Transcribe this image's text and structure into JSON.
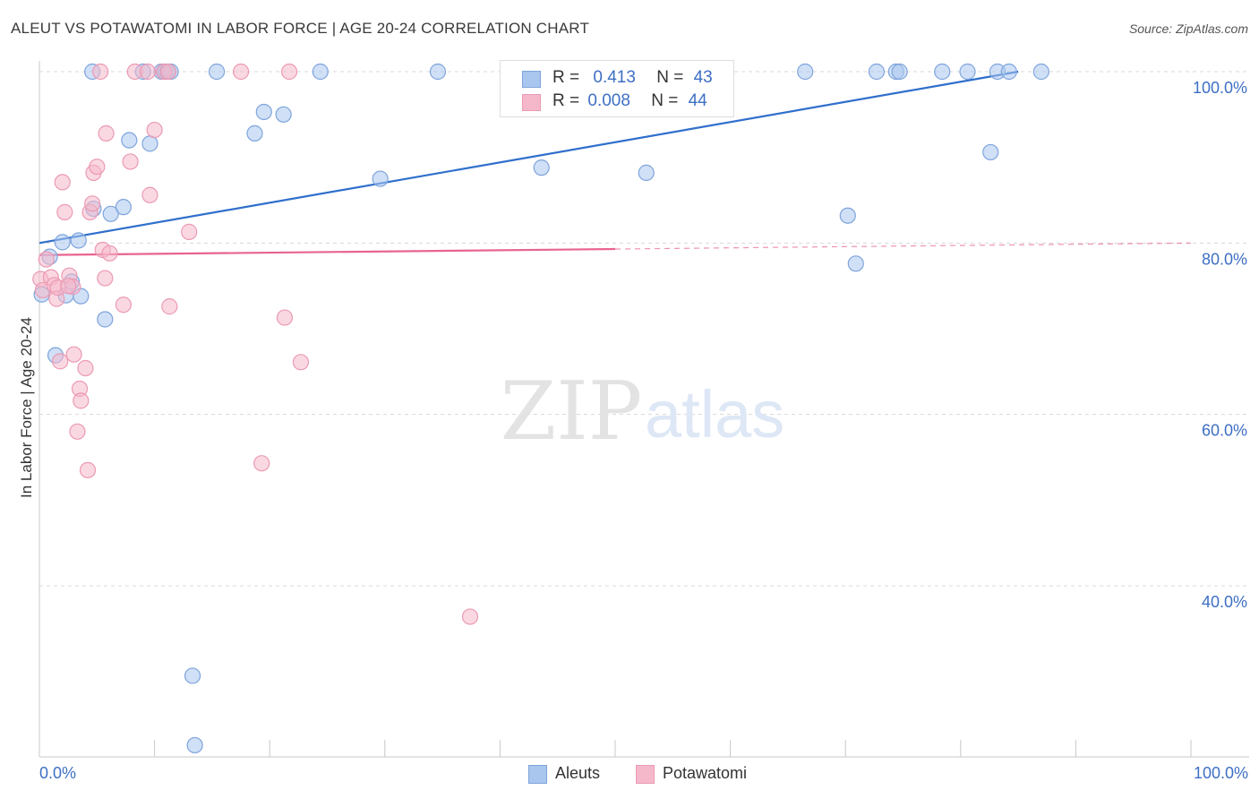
{
  "header": {
    "title": "ALEUT VS POTAWATOMI IN LABOR FORCE | AGE 20-24 CORRELATION CHART",
    "source": "Source: ZipAtlas.com"
  },
  "watermark": {
    "zip": "ZIP",
    "atlas": "atlas"
  },
  "stats": {
    "aleut": {
      "r_label": "R =",
      "r_value": "0.413",
      "n_label": "N =",
      "n_value": "43"
    },
    "potawatomi": {
      "r_label": "R =",
      "r_value": "0.008",
      "n_label": "N =",
      "n_value": "44"
    }
  },
  "legend": {
    "aleut": "Aleuts",
    "potawatomi": "Potawatomi"
  },
  "colors": {
    "aleut_fill": "#a9c6ee",
    "aleut_stroke": "#7ea4dc",
    "aleut_line": "#2f6fcc",
    "potawatomi_fill": "#f5b8cb",
    "potawatomi_stroke": "#eb9ab3",
    "potawatomi_line": "#e8648f",
    "grid": "#d8d8d8",
    "axis_text": "#3d6fc4"
  },
  "chart_data": {
    "type": "scatter",
    "title": "ALEUT VS POTAWATOMI IN LABOR FORCE | AGE 20-24 CORRELATION CHART",
    "xlabel": "",
    "ylabel": "In Labor Force | Age 20-24",
    "xlim": [
      0,
      100
    ],
    "ylim": [
      20,
      104
    ],
    "x_tick_labels": [
      "0.0%",
      "100.0%"
    ],
    "y_ticks": [
      40,
      60,
      80,
      100
    ],
    "y_tick_labels": [
      "40.0%",
      "60.0%",
      "80.0%",
      "100.0%"
    ],
    "legend_position": "bottom-center",
    "series": [
      {
        "name": "Aleuts",
        "r": 0.413,
        "n": 43,
        "trend": {
          "x": [
            0,
            85
          ],
          "y": [
            80.0,
            100.0
          ]
        },
        "points": [
          {
            "x": 0.2,
            "y": 74.0
          },
          {
            "x": 0.9,
            "y": 78.4
          },
          {
            "x": 1.4,
            "y": 66.9
          },
          {
            "x": 2.0,
            "y": 80.1
          },
          {
            "x": 2.3,
            "y": 73.9
          },
          {
            "x": 3.4,
            "y": 80.3
          },
          {
            "x": 3.6,
            "y": 73.8
          },
          {
            "x": 2.8,
            "y": 75.5
          },
          {
            "x": 4.7,
            "y": 84.0
          },
          {
            "x": 5.7,
            "y": 71.1
          },
          {
            "x": 6.2,
            "y": 83.4
          },
          {
            "x": 7.3,
            "y": 84.2
          },
          {
            "x": 7.8,
            "y": 92.0
          },
          {
            "x": 9.6,
            "y": 91.6
          },
          {
            "x": 4.6,
            "y": 100.0
          },
          {
            "x": 9.0,
            "y": 100.0
          },
          {
            "x": 10.6,
            "y": 100.0
          },
          {
            "x": 10.9,
            "y": 100.0
          },
          {
            "x": 11.1,
            "y": 100.0
          },
          {
            "x": 11.4,
            "y": 100.0
          },
          {
            "x": 15.4,
            "y": 100.0
          },
          {
            "x": 18.7,
            "y": 92.8
          },
          {
            "x": 19.5,
            "y": 95.3
          },
          {
            "x": 21.2,
            "y": 95.0
          },
          {
            "x": 24.4,
            "y": 100.0
          },
          {
            "x": 34.6,
            "y": 100.0
          },
          {
            "x": 29.6,
            "y": 87.5
          },
          {
            "x": 43.6,
            "y": 88.8
          },
          {
            "x": 52.7,
            "y": 88.2
          },
          {
            "x": 66.5,
            "y": 100.0
          },
          {
            "x": 70.2,
            "y": 83.2
          },
          {
            "x": 70.9,
            "y": 77.6
          },
          {
            "x": 72.7,
            "y": 100.0
          },
          {
            "x": 74.4,
            "y": 100.0
          },
          {
            "x": 74.7,
            "y": 100.0
          },
          {
            "x": 78.4,
            "y": 100.0
          },
          {
            "x": 80.6,
            "y": 100.0
          },
          {
            "x": 82.6,
            "y": 90.6
          },
          {
            "x": 83.2,
            "y": 100.0
          },
          {
            "x": 84.2,
            "y": 100.0
          },
          {
            "x": 87.0,
            "y": 100.0
          },
          {
            "x": 13.3,
            "y": 29.5
          },
          {
            "x": 13.5,
            "y": 21.4
          }
        ]
      },
      {
        "name": "Potawatomi",
        "r": 0.008,
        "n": 44,
        "trend": {
          "x": [
            0,
            100
          ],
          "y": [
            78.6,
            80.0
          ],
          "solid_until_x": 50
        },
        "points": [
          {
            "x": 0.1,
            "y": 75.8
          },
          {
            "x": 0.3,
            "y": 74.5
          },
          {
            "x": 0.6,
            "y": 78.1
          },
          {
            "x": 1.0,
            "y": 76.0
          },
          {
            "x": 1.3,
            "y": 75.1
          },
          {
            "x": 1.5,
            "y": 73.5
          },
          {
            "x": 1.6,
            "y": 74.8
          },
          {
            "x": 1.8,
            "y": 66.2
          },
          {
            "x": 2.0,
            "y": 87.1
          },
          {
            "x": 2.2,
            "y": 83.6
          },
          {
            "x": 2.6,
            "y": 76.2
          },
          {
            "x": 2.9,
            "y": 74.9
          },
          {
            "x": 3.0,
            "y": 67.0
          },
          {
            "x": 3.3,
            "y": 58.0
          },
          {
            "x": 3.5,
            "y": 63.0
          },
          {
            "x": 3.6,
            "y": 61.6
          },
          {
            "x": 4.0,
            "y": 65.4
          },
          {
            "x": 4.2,
            "y": 53.5
          },
          {
            "x": 4.4,
            "y": 83.6
          },
          {
            "x": 4.6,
            "y": 84.6
          },
          {
            "x": 4.7,
            "y": 88.2
          },
          {
            "x": 5.0,
            "y": 88.9
          },
          {
            "x": 5.3,
            "y": 100.0
          },
          {
            "x": 5.5,
            "y": 79.2
          },
          {
            "x": 5.7,
            "y": 75.9
          },
          {
            "x": 5.8,
            "y": 92.8
          },
          {
            "x": 6.1,
            "y": 78.8
          },
          {
            "x": 7.3,
            "y": 72.8
          },
          {
            "x": 7.9,
            "y": 89.5
          },
          {
            "x": 8.3,
            "y": 100.0
          },
          {
            "x": 9.4,
            "y": 100.0
          },
          {
            "x": 9.6,
            "y": 85.6
          },
          {
            "x": 10.0,
            "y": 93.2
          },
          {
            "x": 10.8,
            "y": 100.0
          },
          {
            "x": 11.2,
            "y": 100.0
          },
          {
            "x": 11.3,
            "y": 72.6
          },
          {
            "x": 13.0,
            "y": 81.3
          },
          {
            "x": 17.5,
            "y": 100.0
          },
          {
            "x": 19.3,
            "y": 54.3
          },
          {
            "x": 21.3,
            "y": 71.3
          },
          {
            "x": 21.7,
            "y": 100.0
          },
          {
            "x": 22.7,
            "y": 66.1
          },
          {
            "x": 37.4,
            "y": 36.4
          },
          {
            "x": 2.5,
            "y": 75.0
          }
        ]
      }
    ]
  }
}
